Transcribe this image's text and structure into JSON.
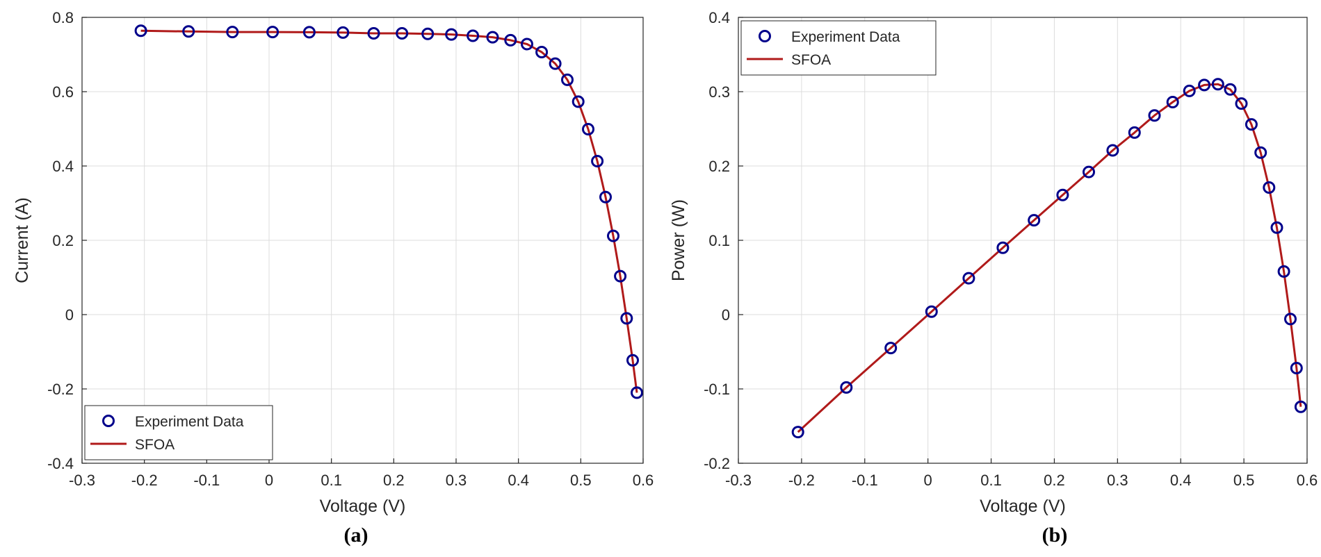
{
  "colors": {
    "marker": "#00008b",
    "line": "#b01a1a",
    "grid": "#dcdcdc",
    "axis": "#262626"
  },
  "chart_data": [
    {
      "type": "line",
      "panel_label": "(a)",
      "title": "",
      "xlabel": "Voltage (V)",
      "ylabel": "Current (A)",
      "xlim": [
        -0.3,
        0.6
      ],
      "ylim": [
        -0.4,
        0.8
      ],
      "xticks": [
        -0.3,
        -0.2,
        -0.1,
        0,
        0.1,
        0.2,
        0.3,
        0.4,
        0.5,
        0.6
      ],
      "yticks": [
        -0.4,
        -0.2,
        0,
        0.2,
        0.4,
        0.6,
        0.8
      ],
      "xtick_labels": [
        "-0.3",
        "-0.2",
        "-0.1",
        "0",
        "0.1",
        "0.2",
        "0.3",
        "0.4",
        "0.5",
        "0.6"
      ],
      "ytick_labels": [
        "-0.4",
        "-0.2",
        "0",
        "0.2",
        "0.4",
        "0.6",
        "0.8"
      ],
      "grid": true,
      "legend_position": "bottom-left",
      "series": [
        {
          "name": "Experiment Data",
          "style": "markers",
          "x": [
            -0.2057,
            -0.1291,
            -0.0588,
            0.0057,
            0.0646,
            0.1185,
            0.1678,
            0.2132,
            0.2545,
            0.2924,
            0.3269,
            0.3585,
            0.3873,
            0.4137,
            0.4373,
            0.459,
            0.4784,
            0.496,
            0.5119,
            0.5265,
            0.5398,
            0.5521,
            0.5633,
            0.5736,
            0.5833,
            0.59
          ],
          "y": [
            0.764,
            0.762,
            0.7605,
            0.7605,
            0.76,
            0.759,
            0.757,
            0.757,
            0.7555,
            0.754,
            0.7505,
            0.7465,
            0.7385,
            0.728,
            0.7065,
            0.6755,
            0.632,
            0.573,
            0.499,
            0.413,
            0.3165,
            0.212,
            0.1035,
            -0.01,
            -0.123,
            -0.21
          ]
        },
        {
          "name": "SFOA",
          "style": "line",
          "x": [
            -0.2057,
            -0.1291,
            -0.0588,
            0.0057,
            0.0646,
            0.1185,
            0.1678,
            0.2132,
            0.2545,
            0.2924,
            0.3269,
            0.3585,
            0.3873,
            0.4137,
            0.4373,
            0.459,
            0.4784,
            0.496,
            0.5119,
            0.5265,
            0.5398,
            0.5521,
            0.5633,
            0.5736,
            0.5833,
            0.59
          ],
          "y": [
            0.764,
            0.762,
            0.7605,
            0.7605,
            0.76,
            0.759,
            0.757,
            0.757,
            0.7555,
            0.754,
            0.7505,
            0.7465,
            0.7385,
            0.728,
            0.7065,
            0.6755,
            0.632,
            0.573,
            0.499,
            0.413,
            0.3165,
            0.212,
            0.1035,
            -0.01,
            -0.123,
            -0.21
          ]
        }
      ]
    },
    {
      "type": "line",
      "panel_label": "(b)",
      "title": "",
      "xlabel": "Voltage (V)",
      "ylabel": "Power (W)",
      "xlim": [
        -0.3,
        0.6
      ],
      "ylim": [
        -0.2,
        0.4
      ],
      "xticks": [
        -0.3,
        -0.2,
        -0.1,
        0,
        0.1,
        0.2,
        0.3,
        0.4,
        0.5,
        0.6
      ],
      "yticks": [
        -0.2,
        -0.1,
        0,
        0.1,
        0.2,
        0.3,
        0.4
      ],
      "xtick_labels": [
        "-0.3",
        "-0.2",
        "-0.1",
        "0",
        "0.1",
        "0.2",
        "0.3",
        "0.4",
        "0.5",
        "0.6"
      ],
      "ytick_labels": [
        "-0.2",
        "-0.1",
        "0",
        "0.1",
        "0.2",
        "0.3",
        "0.4"
      ],
      "grid": true,
      "legend_position": "top-left",
      "series": [
        {
          "name": "Experiment Data",
          "style": "markers",
          "x": [
            -0.2057,
            -0.1291,
            -0.0588,
            0.0057,
            0.0646,
            0.1185,
            0.1678,
            0.2132,
            0.2545,
            0.2924,
            0.3269,
            0.3585,
            0.3873,
            0.4137,
            0.4373,
            0.459,
            0.4784,
            0.496,
            0.5119,
            0.5265,
            0.5398,
            0.5521,
            0.5633,
            0.5736,
            0.5833,
            0.59
          ],
          "y": [
            -0.158,
            -0.098,
            -0.045,
            0.004,
            0.049,
            0.09,
            0.127,
            0.161,
            0.192,
            0.221,
            0.245,
            0.268,
            0.286,
            0.301,
            0.309,
            0.31,
            0.303,
            0.284,
            0.256,
            0.218,
            0.171,
            0.117,
            0.058,
            -0.006,
            -0.072,
            -0.124
          ]
        },
        {
          "name": "SFOA",
          "style": "line",
          "x": [
            -0.2057,
            -0.1291,
            -0.0588,
            0.0057,
            0.0646,
            0.1185,
            0.1678,
            0.2132,
            0.2545,
            0.2924,
            0.3269,
            0.3585,
            0.3873,
            0.4137,
            0.4373,
            0.459,
            0.4784,
            0.496,
            0.5119,
            0.5265,
            0.5398,
            0.5521,
            0.5633,
            0.5736,
            0.5833,
            0.59
          ],
          "y": [
            -0.158,
            -0.098,
            -0.045,
            0.004,
            0.049,
            0.09,
            0.127,
            0.161,
            0.192,
            0.221,
            0.245,
            0.268,
            0.286,
            0.301,
            0.309,
            0.31,
            0.303,
            0.284,
            0.256,
            0.218,
            0.171,
            0.117,
            0.058,
            -0.006,
            -0.072,
            -0.124
          ]
        }
      ]
    }
  ]
}
